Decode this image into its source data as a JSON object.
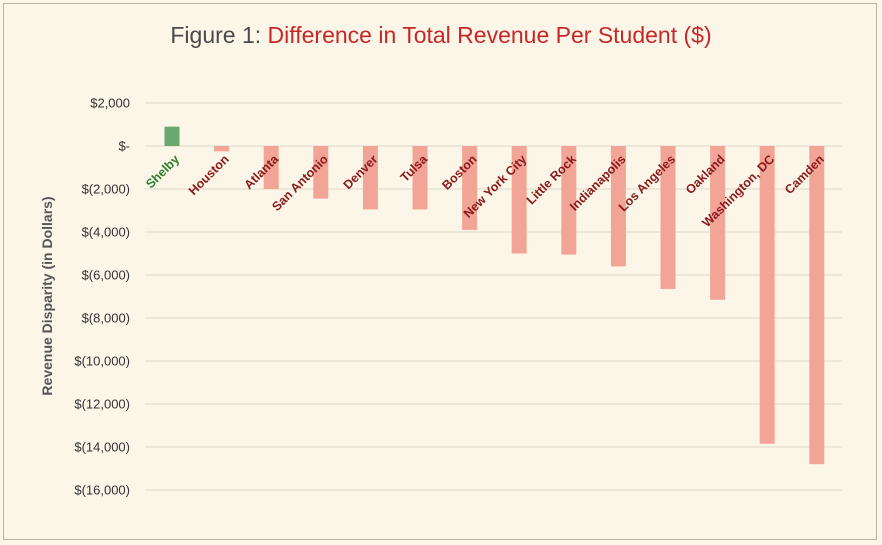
{
  "title_prefix": "Figure 1: ",
  "title_main": "Difference in Total Revenue Per Student ($)",
  "colors": {
    "positive": "#6aa86f",
    "negative": "#f2a597",
    "positive_label": "#2e7d32",
    "negative_label": "#8b1a1a",
    "title_main": "#c62828",
    "title_prefix": "#4a4a4a",
    "grid": "#ddd8c8"
  },
  "chart_data": {
    "type": "bar",
    "title": "Figure 1: Difference in Total Revenue Per Student ($)",
    "xlabel": "",
    "ylabel": "Revenue Disparity (in Dollars)",
    "ylim": [
      -16000,
      2000
    ],
    "yticks": [
      2000,
      0,
      -2000,
      -4000,
      -6000,
      -8000,
      -10000,
      -12000,
      -14000,
      -16000
    ],
    "ytick_labels": [
      "$2,000",
      "$-",
      "$(2,000)",
      "$(4,000)",
      "$(6,000)",
      "$(8,000)",
      "$(10,000)",
      "$(12,000)",
      "$(14,000)",
      "$(16,000)"
    ],
    "grid": true,
    "legend": "none",
    "categories": [
      "Shelby",
      "Houston",
      "Atlanta",
      "San Antonio",
      "Denver",
      "Tulsa",
      "Boston",
      "New York City",
      "Little Rock",
      "Indianapolis",
      "Los Angeles",
      "Oakland",
      "Washington, DC",
      "Camden"
    ],
    "values": [
      900,
      -250,
      -2000,
      -2450,
      -2950,
      -2950,
      -3900,
      -5000,
      -5050,
      -5600,
      -6650,
      -7150,
      -13850,
      -14800
    ]
  }
}
